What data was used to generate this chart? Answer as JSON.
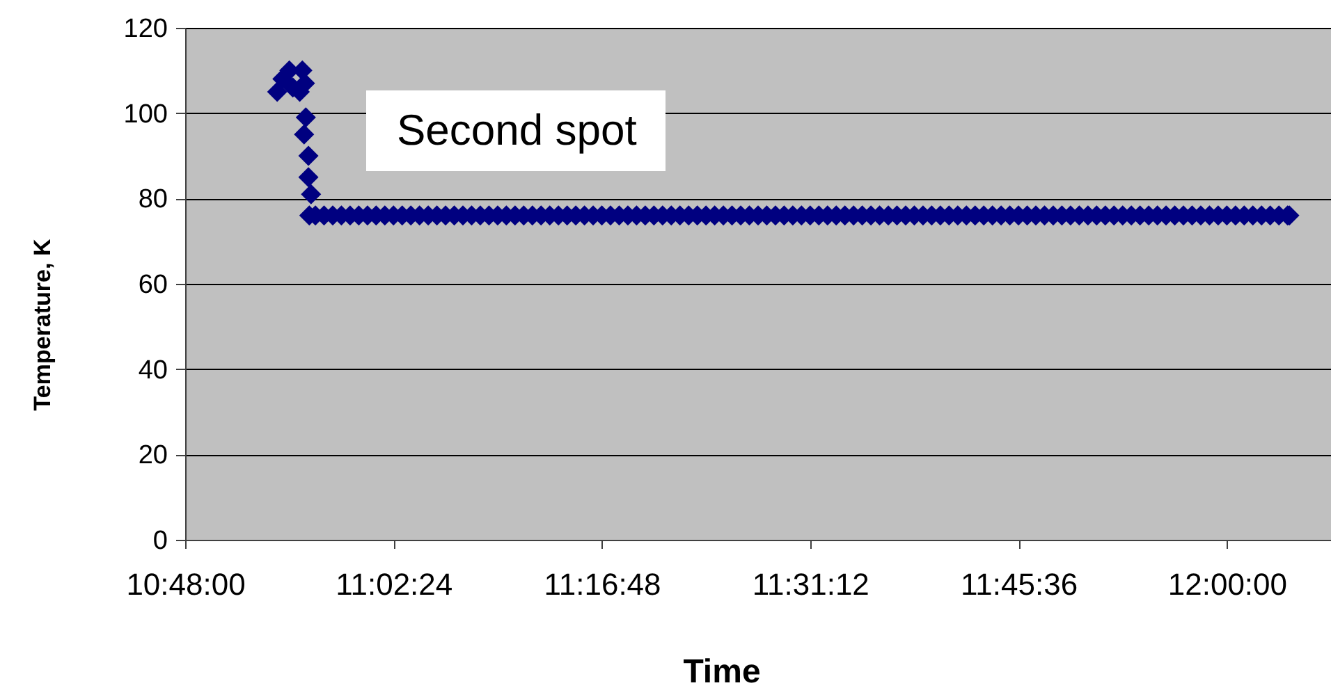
{
  "chart_data": {
    "type": "scatter",
    "xlabel": "Time",
    "ylabel": "Temperature, K",
    "annotations": [
      "Second spot"
    ],
    "xlim": [
      10.8,
      12.12
    ],
    "xticks": [
      {
        "value": 10.8,
        "label": "10:48:00"
      },
      {
        "value": 11.04,
        "label": "11:02:24"
      },
      {
        "value": 11.28,
        "label": "11:16:48"
      },
      {
        "value": 11.52,
        "label": "11:31:12"
      },
      {
        "value": 11.76,
        "label": "11:45:36"
      },
      {
        "value": 12.0,
        "label": "12:00:00"
      }
    ],
    "ylim": [
      0,
      120
    ],
    "yticks": [
      0,
      20,
      40,
      60,
      80,
      100,
      120
    ],
    "grid": "y",
    "marker": "diamond",
    "series": [
      {
        "color": "#000080",
        "x": [
          10.906,
          10.912,
          10.92,
          10.924,
          10.932,
          10.935,
          10.938,
          10.939,
          10.937,
          10.942,
          10.942,
          10.945,
          10.943,
          10.95,
          10.96,
          10.97,
          10.98,
          10.99,
          11,
          11.01,
          11.02,
          11.03,
          11.04,
          11.05,
          11.06,
          11.07,
          11.08,
          11.09,
          11.1,
          11.11,
          11.12,
          11.13,
          11.14,
          11.15,
          11.16,
          11.17,
          11.18,
          11.19,
          11.2,
          11.21,
          11.22,
          11.23,
          11.24,
          11.25,
          11.26,
          11.27,
          11.28,
          11.29,
          11.3,
          11.31,
          11.32,
          11.33,
          11.34,
          11.35,
          11.36,
          11.37,
          11.38,
          11.39,
          11.4,
          11.41,
          11.42,
          11.43,
          11.44,
          11.45,
          11.46,
          11.47,
          11.48,
          11.49,
          11.5,
          11.51,
          11.52,
          11.53,
          11.54,
          11.55,
          11.56,
          11.57,
          11.58,
          11.59,
          11.6,
          11.61,
          11.62,
          11.63,
          11.64,
          11.65,
          11.66,
          11.67,
          11.68,
          11.69,
          11.7,
          11.71,
          11.72,
          11.73,
          11.74,
          11.75,
          11.76,
          11.77,
          11.78,
          11.79,
          11.8,
          11.81,
          11.82,
          11.83,
          11.84,
          11.85,
          11.86,
          11.87,
          11.88,
          11.89,
          11.9,
          11.91,
          11.92,
          11.93,
          11.94,
          11.95,
          11.96,
          11.97,
          11.98,
          11.99,
          12,
          12.01,
          12.02,
          12.03,
          12.04,
          12.05,
          12.06,
          12.07,
          12.072
        ],
        "values": [
          105,
          108,
          110,
          106,
          105,
          110,
          107,
          99,
          95,
          90,
          85,
          81,
          76,
          76,
          76,
          76,
          76,
          76,
          76,
          76,
          76,
          76,
          76,
          76,
          76,
          76,
          76,
          76,
          76,
          76,
          76,
          76,
          76,
          76,
          76,
          76,
          76,
          76,
          76,
          76,
          76,
          76,
          76,
          76,
          76,
          76,
          76,
          76,
          76,
          76,
          76,
          76,
          76,
          76,
          76,
          76,
          76,
          76,
          76,
          76,
          76,
          76,
          76,
          76,
          76,
          76,
          76,
          76,
          76,
          76,
          76,
          76,
          76,
          76,
          76,
          76,
          76,
          76,
          76,
          76,
          76,
          76,
          76,
          76,
          76,
          76,
          76,
          76,
          76,
          76,
          76,
          76,
          76,
          76,
          76,
          76,
          76,
          76,
          76,
          76,
          76,
          76,
          76,
          76,
          76,
          76,
          76,
          76,
          76,
          76,
          76,
          76,
          76,
          76,
          76,
          76,
          76,
          76,
          76,
          76,
          76,
          76,
          76,
          76,
          76,
          76,
          76
        ]
      }
    ]
  }
}
